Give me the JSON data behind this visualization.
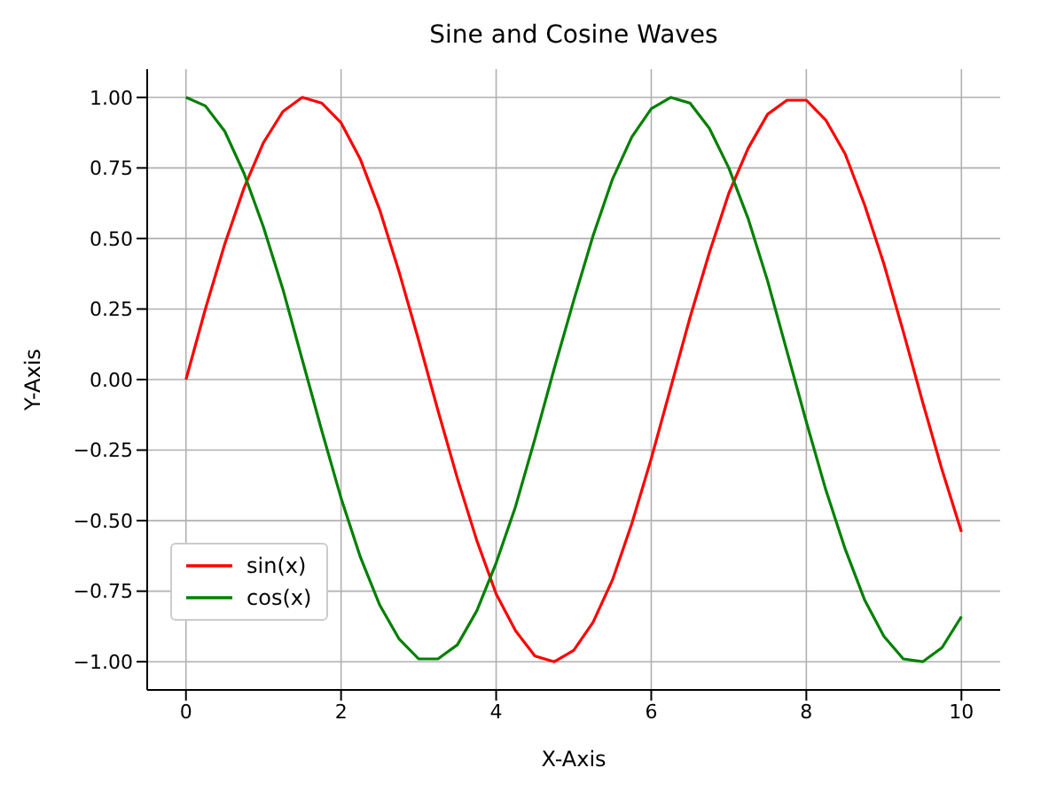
{
  "chart_data": {
    "type": "line",
    "title": "Sine and Cosine Waves",
    "xlabel": "X-Axis",
    "ylabel": "Y-Axis",
    "x": [
      0,
      0.25,
      0.5,
      0.75,
      1,
      1.25,
      1.5,
      1.75,
      2,
      2.25,
      2.5,
      2.75,
      3,
      3.25,
      3.5,
      3.75,
      4,
      4.25,
      4.5,
      4.75,
      5,
      5.25,
      5.5,
      5.75,
      6,
      6.25,
      6.5,
      6.75,
      7,
      7.25,
      7.5,
      7.75,
      8,
      8.25,
      8.5,
      8.75,
      9,
      9.25,
      9.5,
      9.75,
      10
    ],
    "series": [
      {
        "name": "sin(x)",
        "color": "#ff0000",
        "values": [
          0,
          0.25,
          0.48,
          0.68,
          0.84,
          0.95,
          1.0,
          0.98,
          0.91,
          0.78,
          0.6,
          0.38,
          0.14,
          -0.11,
          -0.35,
          -0.57,
          -0.76,
          -0.89,
          -0.98,
          -1.0,
          -0.96,
          -0.86,
          -0.71,
          -0.51,
          -0.28,
          -0.03,
          0.22,
          0.45,
          0.66,
          0.82,
          0.94,
          0.99,
          0.99,
          0.92,
          0.8,
          0.62,
          0.41,
          0.17,
          -0.08,
          -0.32,
          -0.54
        ]
      },
      {
        "name": "cos(x)",
        "color": "#008000",
        "values": [
          1,
          0.97,
          0.88,
          0.73,
          0.54,
          0.32,
          0.07,
          -0.18,
          -0.42,
          -0.63,
          -0.8,
          -0.92,
          -0.99,
          -0.99,
          -0.94,
          -0.82,
          -0.65,
          -0.45,
          -0.21,
          0.04,
          0.28,
          0.51,
          0.71,
          0.86,
          0.96,
          1.0,
          0.98,
          0.89,
          0.75,
          0.57,
          0.35,
          0.1,
          -0.15,
          -0.39,
          -0.6,
          -0.78,
          -0.91,
          -0.99,
          -1.0,
          -0.95,
          -0.84
        ]
      }
    ],
    "xlim": [
      -0.5,
      10.5
    ],
    "xticks": [
      0,
      2,
      4,
      6,
      8,
      10
    ],
    "ylim": [
      -1.1,
      1.1
    ],
    "yticks": [
      {
        "value": -1,
        "label": "−1.00"
      },
      {
        "value": -0.75,
        "label": "−0.75"
      },
      {
        "value": -0.5,
        "label": "−0.50"
      },
      {
        "value": -0.25,
        "label": "−0.25"
      },
      {
        "value": 0,
        "label": "0.00"
      },
      {
        "value": 0.25,
        "label": "0.25"
      },
      {
        "value": 0.5,
        "label": "0.50"
      },
      {
        "value": 0.75,
        "label": "0.75"
      },
      {
        "value": 1,
        "label": "1.00"
      }
    ],
    "grid": true,
    "legend": "bottom left",
    "marker": "none",
    "line_style": "solid"
  }
}
